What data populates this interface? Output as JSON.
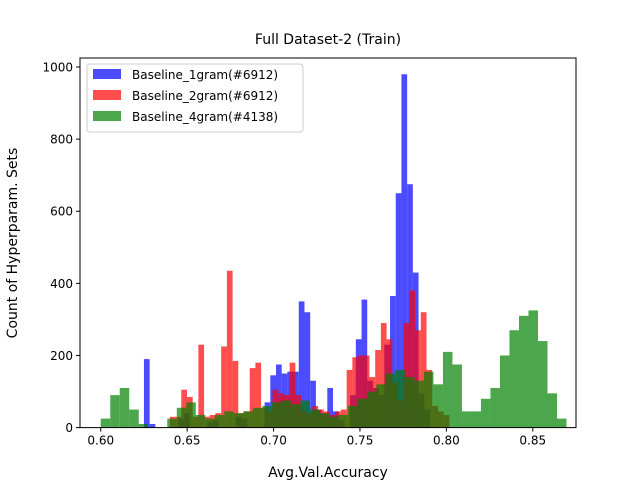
{
  "chart_data": {
    "type": "histogram",
    "title": "Full Dataset-2 (Train)",
    "xlabel": "Avg.Val.Accuracy",
    "ylabel": "Count of Hyperparam. Sets",
    "xlim": [
      0.588,
      0.875
    ],
    "ylim": [
      0,
      1025
    ],
    "x_ticks": [
      "0.60",
      "0.65",
      "0.70",
      "0.75",
      "0.80",
      "0.85"
    ],
    "x_tick_values": [
      0.6,
      0.65,
      0.7,
      0.75,
      0.8,
      0.85
    ],
    "y_ticks": [
      "0",
      "200",
      "400",
      "600",
      "800",
      "1000"
    ],
    "y_tick_values": [
      0,
      200,
      400,
      600,
      800,
      1000
    ],
    "grid": false,
    "legend_position": "top-left",
    "series": [
      {
        "name": "Baseline_1gram(#6912)",
        "color": "#0000ff",
        "opacity": 0.7,
        "bins": [
          [
            0.625,
            0.6283,
            190
          ],
          [
            0.6283,
            0.6316,
            10
          ],
          [
            0.645,
            0.6483,
            25
          ],
          [
            0.6483,
            0.6516,
            40
          ],
          [
            0.6616,
            0.6649,
            15
          ],
          [
            0.6649,
            0.6682,
            20
          ],
          [
            0.6782,
            0.6815,
            30
          ],
          [
            0.6815,
            0.6848,
            25
          ],
          [
            0.6948,
            0.6981,
            70
          ],
          [
            0.6981,
            0.7014,
            145
          ],
          [
            0.7014,
            0.7047,
            175
          ],
          [
            0.7047,
            0.708,
            150
          ],
          [
            0.708,
            0.7113,
            155
          ],
          [
            0.7113,
            0.7146,
            155
          ],
          [
            0.7146,
            0.7179,
            350
          ],
          [
            0.7179,
            0.7212,
            320
          ],
          [
            0.7212,
            0.7245,
            130
          ],
          [
            0.7245,
            0.7278,
            50
          ],
          [
            0.7278,
            0.7311,
            40
          ],
          [
            0.7311,
            0.7344,
            110
          ],
          [
            0.7344,
            0.7377,
            45
          ],
          [
            0.7377,
            0.741,
            20
          ],
          [
            0.7443,
            0.7476,
            90
          ],
          [
            0.7476,
            0.7509,
            245
          ],
          [
            0.7509,
            0.7542,
            355
          ],
          [
            0.7542,
            0.7575,
            130
          ],
          [
            0.7575,
            0.7608,
            110
          ],
          [
            0.7608,
            0.7641,
            90
          ],
          [
            0.7641,
            0.7674,
            230
          ],
          [
            0.7674,
            0.7707,
            365
          ],
          [
            0.7707,
            0.774,
            650
          ],
          [
            0.774,
            0.7773,
            980
          ],
          [
            0.7773,
            0.7806,
            675
          ],
          [
            0.7806,
            0.7839,
            430
          ],
          [
            0.7839,
            0.7872,
            95
          ],
          [
            0.7872,
            0.7905,
            50
          ]
        ]
      },
      {
        "name": "Baseline_2gram(#6912)",
        "color": "#ff0000",
        "opacity": 0.7,
        "bins": [
          [
            0.64,
            0.6433,
            30
          ],
          [
            0.6433,
            0.6466,
            30
          ],
          [
            0.6466,
            0.6499,
            105
          ],
          [
            0.6499,
            0.6532,
            85
          ],
          [
            0.6532,
            0.6565,
            30
          ],
          [
            0.6565,
            0.6598,
            230
          ],
          [
            0.6598,
            0.6631,
            30
          ],
          [
            0.6631,
            0.6664,
            35
          ],
          [
            0.6664,
            0.6697,
            40
          ],
          [
            0.6697,
            0.673,
            225
          ],
          [
            0.673,
            0.6763,
            435
          ],
          [
            0.6763,
            0.6796,
            185
          ],
          [
            0.6796,
            0.6829,
            40
          ],
          [
            0.6829,
            0.6862,
            45
          ],
          [
            0.6862,
            0.6895,
            165
          ],
          [
            0.6895,
            0.6928,
            180
          ],
          [
            0.6928,
            0.6961,
            55
          ],
          [
            0.6961,
            0.6994,
            45
          ],
          [
            0.6994,
            0.7027,
            105
          ],
          [
            0.7027,
            0.706,
            95
          ],
          [
            0.706,
            0.7093,
            90
          ],
          [
            0.7093,
            0.7126,
            180
          ],
          [
            0.7126,
            0.7159,
            90
          ],
          [
            0.7159,
            0.7192,
            45
          ],
          [
            0.7192,
            0.7225,
            40
          ],
          [
            0.7225,
            0.7258,
            60
          ],
          [
            0.7258,
            0.7291,
            50
          ],
          [
            0.7291,
            0.7324,
            45
          ],
          [
            0.7324,
            0.7357,
            35
          ],
          [
            0.7357,
            0.739,
            45
          ],
          [
            0.739,
            0.7423,
            50
          ],
          [
            0.7423,
            0.7456,
            160
          ],
          [
            0.7456,
            0.7489,
            195
          ],
          [
            0.7489,
            0.7522,
            200
          ],
          [
            0.7522,
            0.7555,
            200
          ],
          [
            0.7555,
            0.7588,
            140
          ],
          [
            0.7588,
            0.7621,
            215
          ],
          [
            0.7621,
            0.7654,
            290
          ],
          [
            0.7654,
            0.7687,
            245
          ],
          [
            0.7687,
            0.772,
            125
          ],
          [
            0.772,
            0.7753,
            75
          ],
          [
            0.7753,
            0.7786,
            290
          ],
          [
            0.7786,
            0.7819,
            380
          ],
          [
            0.7819,
            0.7852,
            270
          ],
          [
            0.7852,
            0.7885,
            320
          ],
          [
            0.7885,
            0.7918,
            160
          ],
          [
            0.7918,
            0.7951,
            60
          ],
          [
            0.7951,
            0.7984,
            45
          ],
          [
            0.7984,
            0.8017,
            35
          ]
        ]
      },
      {
        "name": "Baseline_4gram(#4138)",
        "color": "#008000",
        "opacity": 0.7,
        "bins": [
          [
            0.6,
            0.6055,
            25
          ],
          [
            0.6055,
            0.611,
            90
          ],
          [
            0.611,
            0.6165,
            110
          ],
          [
            0.6165,
            0.622,
            50
          ],
          [
            0.622,
            0.6275,
            10
          ],
          [
            0.6385,
            0.644,
            25
          ],
          [
            0.644,
            0.6495,
            55
          ],
          [
            0.6495,
            0.655,
            70
          ],
          [
            0.655,
            0.6605,
            35
          ],
          [
            0.6605,
            0.666,
            25
          ],
          [
            0.666,
            0.6715,
            35
          ],
          [
            0.6715,
            0.677,
            45
          ],
          [
            0.677,
            0.6825,
            40
          ],
          [
            0.6825,
            0.688,
            45
          ],
          [
            0.688,
            0.6935,
            55
          ],
          [
            0.6935,
            0.699,
            60
          ],
          [
            0.699,
            0.7045,
            70
          ],
          [
            0.7045,
            0.71,
            75
          ],
          [
            0.71,
            0.7155,
            65
          ],
          [
            0.7155,
            0.721,
            75
          ],
          [
            0.721,
            0.7265,
            50
          ],
          [
            0.7265,
            0.732,
            40
          ],
          [
            0.732,
            0.7375,
            30
          ],
          [
            0.7375,
            0.743,
            35
          ],
          [
            0.743,
            0.7485,
            60
          ],
          [
            0.7485,
            0.754,
            80
          ],
          [
            0.754,
            0.7595,
            100
          ],
          [
            0.7595,
            0.765,
            120
          ],
          [
            0.765,
            0.7705,
            150
          ],
          [
            0.7705,
            0.776,
            160
          ],
          [
            0.776,
            0.7815,
            140
          ],
          [
            0.7815,
            0.787,
            130
          ],
          [
            0.787,
            0.7925,
            155
          ],
          [
            0.7925,
            0.798,
            120
          ],
          [
            0.798,
            0.8035,
            210
          ],
          [
            0.8035,
            0.809,
            175
          ],
          [
            0.809,
            0.8145,
            45
          ],
          [
            0.8145,
            0.82,
            45
          ],
          [
            0.82,
            0.8255,
            80
          ],
          [
            0.8255,
            0.831,
            110
          ],
          [
            0.831,
            0.8365,
            200
          ],
          [
            0.8365,
            0.842,
            270
          ],
          [
            0.842,
            0.8475,
            310
          ],
          [
            0.8475,
            0.853,
            325
          ],
          [
            0.853,
            0.8585,
            240
          ],
          [
            0.8585,
            0.864,
            95
          ],
          [
            0.864,
            0.8695,
            25
          ]
        ]
      }
    ]
  }
}
